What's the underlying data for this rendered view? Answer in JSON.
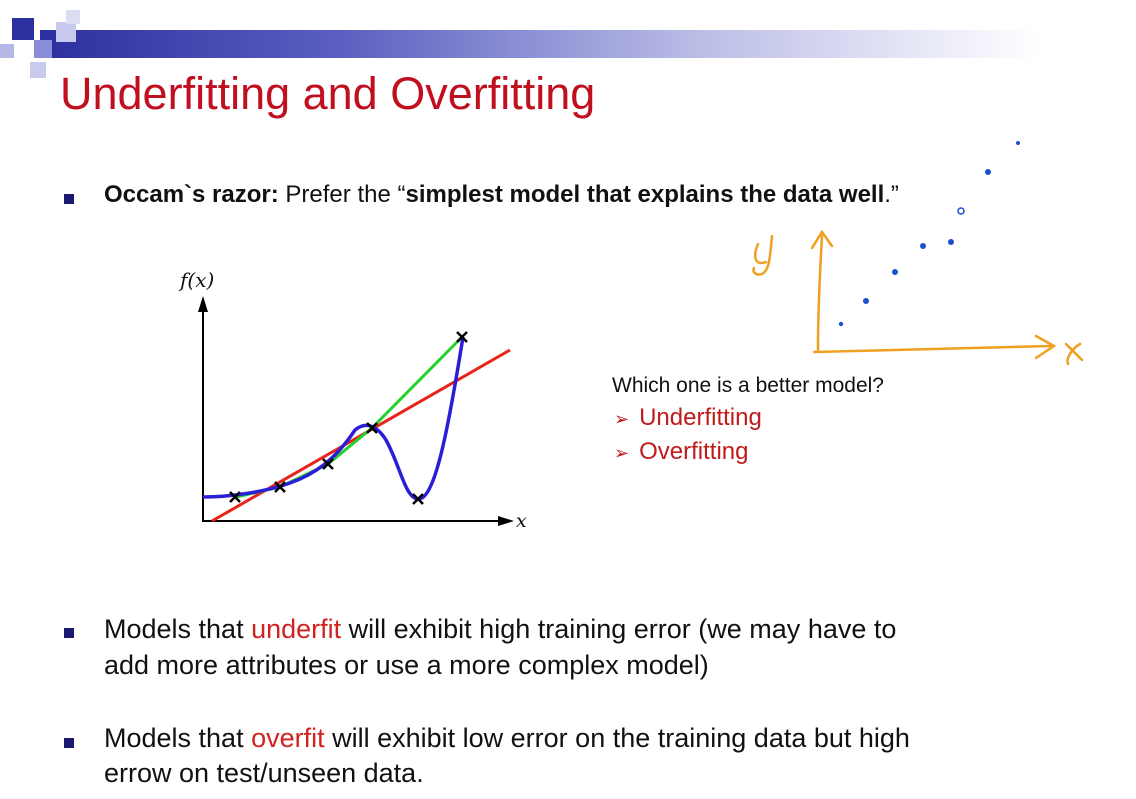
{
  "slide": {
    "title": "Underfitting and Overfitting",
    "colors": {
      "title": "#c0101f",
      "highlight": "#d2221f",
      "bullet": "#1a1a70",
      "banner": "#2c2f9e",
      "ink": "#f0a020",
      "ink_dots": "#1a4fd0"
    }
  },
  "occam": {
    "label": "Occam`s razor:",
    "text_before": " Prefer the “",
    "emphasis": "simplest model that explains the data well",
    "text_after": ".”"
  },
  "figure": {
    "y_label": "f(x)",
    "x_label": "x",
    "series_colors": {
      "linear_fit": "#e8231a",
      "polyline_fit": "#22d22a",
      "overfit_curve": "#2a1fd6"
    }
  },
  "question": {
    "prompt": "Which one is a better model?",
    "options": [
      "Underfitting",
      "Overfitting"
    ]
  },
  "bullets": {
    "underfit": {
      "line1_before": "Models that ",
      "keyword": "underfit",
      "line1_after": " will exhibit high training error (we may have to",
      "line2": "add more attributes or use a more complex model)"
    },
    "overfit": {
      "line1_before": "Models that ",
      "keyword": "overfit",
      "line1_after": " will exhibit low error on the training data but high",
      "line2": "errow on test/unseen data."
    }
  },
  "annotation": {
    "y_letter": "y",
    "x_letter": "x"
  }
}
